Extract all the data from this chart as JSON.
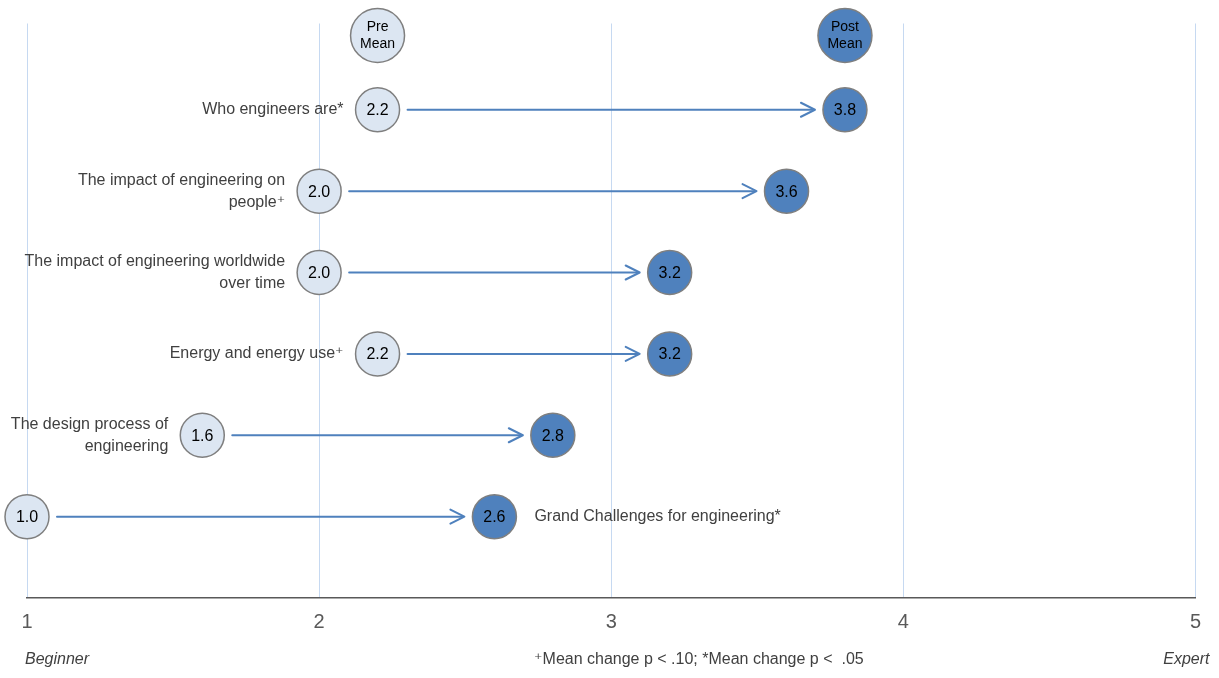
{
  "chart_data": {
    "type": "scatter",
    "categories": [
      "Who engineers are*",
      "The impact of engineering on people⁺",
      "The impact of engineering worldwide over time",
      "Energy and energy use⁺",
      "The design process of engineering",
      "Grand Challenges for engineering*"
    ],
    "series": [
      {
        "name": "Pre Mean",
        "color": "#dce6f2",
        "values": [
          2.2,
          2.0,
          2.0,
          2.2,
          1.6,
          1.0
        ],
        "value_labels": [
          "2.2",
          "2.0",
          "2.0",
          "2.2",
          "1.6",
          "1.0"
        ]
      },
      {
        "name": "Post Mean",
        "color": "#4f81bd",
        "values": [
          3.8,
          3.6,
          3.2,
          3.2,
          2.8,
          2.6
        ],
        "value_labels": [
          "3.8",
          "3.6",
          "3.2",
          "3.2",
          "2.8",
          "2.6"
        ]
      }
    ],
    "orientation": "horizontal",
    "xlim": [
      1,
      5
    ],
    "xticks": [
      1,
      2,
      3,
      4,
      5
    ],
    "grid": "x",
    "legend": "top",
    "marker": "circle",
    "annotations": [
      "Beginner",
      "Expert",
      "⁺Mean change p < .10; *Mean change p <  .05"
    ]
  }
}
